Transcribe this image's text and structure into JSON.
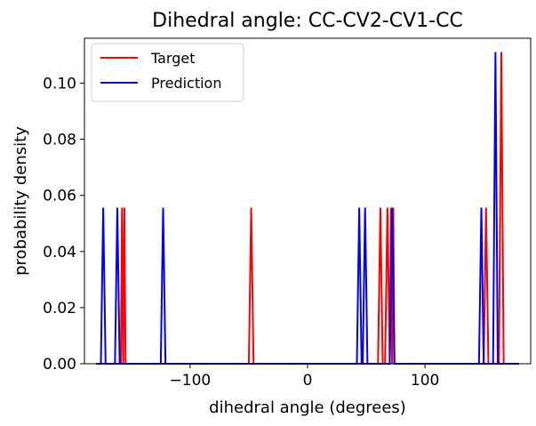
{
  "chart_data": {
    "type": "line",
    "title": "Dihedral angle: CC-CV2-CV1-CC",
    "xlabel": "dihedral angle (degrees)",
    "ylabel": "probability density",
    "xlim": [
      -190,
      190
    ],
    "ylim": [
      0,
      0.116
    ],
    "xticks": [
      -100,
      0,
      100
    ],
    "xtick_labels": [
      "−100",
      "0",
      "100"
    ],
    "yticks": [
      0.0,
      0.02,
      0.04,
      0.06,
      0.08,
      0.1
    ],
    "ytick_labels": [
      "0.00",
      "0.02",
      "0.04",
      "0.06",
      "0.08",
      "0.10"
    ],
    "grid": false,
    "legend_position": "upper-left",
    "series": [
      {
        "name": "Target",
        "color": "#ff0000",
        "x": [
          -180,
          -159,
          -158,
          -157,
          -156,
          -155,
          -154,
          -50,
          -48,
          -46,
          60,
          62,
          64,
          66,
          68,
          70,
          71,
          72,
          73,
          74,
          75,
          150,
          152,
          154,
          163,
          165,
          167,
          180
        ],
        "y": [
          0,
          0,
          0.0556,
          0,
          0.0556,
          0,
          0,
          0,
          0.0556,
          0,
          0,
          0.0556,
          0,
          0,
          0.0556,
          0,
          0.0556,
          0,
          0.0556,
          0,
          0,
          0,
          0.0556,
          0,
          0,
          0.1111,
          0,
          0
        ]
      },
      {
        "name": "Prediction",
        "color": "#0000ff",
        "x": [
          -180,
          -176,
          -174,
          -172,
          -164,
          -162,
          -160,
          -125,
          -123,
          -121,
          42,
          44,
          46,
          47,
          49,
          51,
          70,
          72,
          74,
          146,
          148,
          150,
          158,
          160,
          162,
          164,
          166,
          180
        ],
        "y": [
          0,
          0,
          0.0556,
          0,
          0,
          0.0556,
          0,
          0,
          0.0556,
          0,
          0,
          0.0556,
          0,
          0,
          0.0556,
          0,
          0,
          0.0556,
          0,
          0,
          0.0556,
          0,
          0,
          0.1111,
          0,
          0,
          0,
          0
        ]
      }
    ]
  }
}
